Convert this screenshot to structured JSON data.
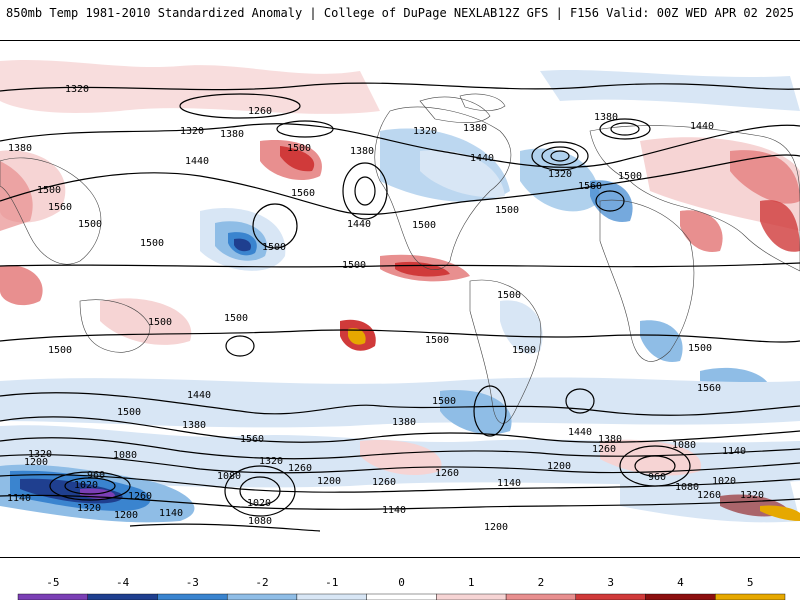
{
  "header": {
    "title_left": "850mb Temp 1981-2010 Standardized Anomaly | College of DuPage NEXLAB",
    "title_right": "12Z GFS | F156 Valid: 00Z WED APR 02 2025"
  },
  "colorbar": {
    "ticks": [
      "-5",
      "-4",
      "-3",
      "-2",
      "-1",
      "0",
      "1",
      "2",
      "3",
      "4",
      "5"
    ],
    "colors": [
      "#7b3fb5",
      "#1f3f8f",
      "#3a84cf",
      "#8fbde6",
      "#d8e6f5",
      "#ffffff",
      "#f6d4d4",
      "#e88f8f",
      "#d03a3a",
      "#8c0f0f",
      "#e6a800"
    ]
  },
  "contours": {
    "labels": [
      "1320",
      "1260",
      "1380",
      "1320",
      "1380",
      "1500",
      "1500",
      "1440",
      "1560",
      "1500",
      "1560",
      "1500",
      "1500",
      "1500",
      "1380",
      "1440",
      "1440",
      "1500",
      "1320",
      "1380",
      "1320",
      "1380",
      "1440",
      "1560",
      "1500",
      "1500",
      "1500",
      "1500",
      "1500",
      "1500",
      "1500",
      "1500",
      "1500",
      "1500",
      "1440",
      "1500",
      "1380",
      "1560",
      "1380",
      "1500",
      "1440",
      "1380",
      "1260",
      "1080",
      "1140",
      "1320",
      "1200",
      "1080",
      "960",
      "1020",
      "1140",
      "1260",
      "1320",
      "1200",
      "1140",
      "1080",
      "1020",
      "1260",
      "1320",
      "1200",
      "1260",
      "1140",
      "1200",
      "1260",
      "1200",
      "1140",
      "1080",
      "1320",
      "1260",
      "1020",
      "960",
      "1080",
      "1560"
    ]
  }
}
